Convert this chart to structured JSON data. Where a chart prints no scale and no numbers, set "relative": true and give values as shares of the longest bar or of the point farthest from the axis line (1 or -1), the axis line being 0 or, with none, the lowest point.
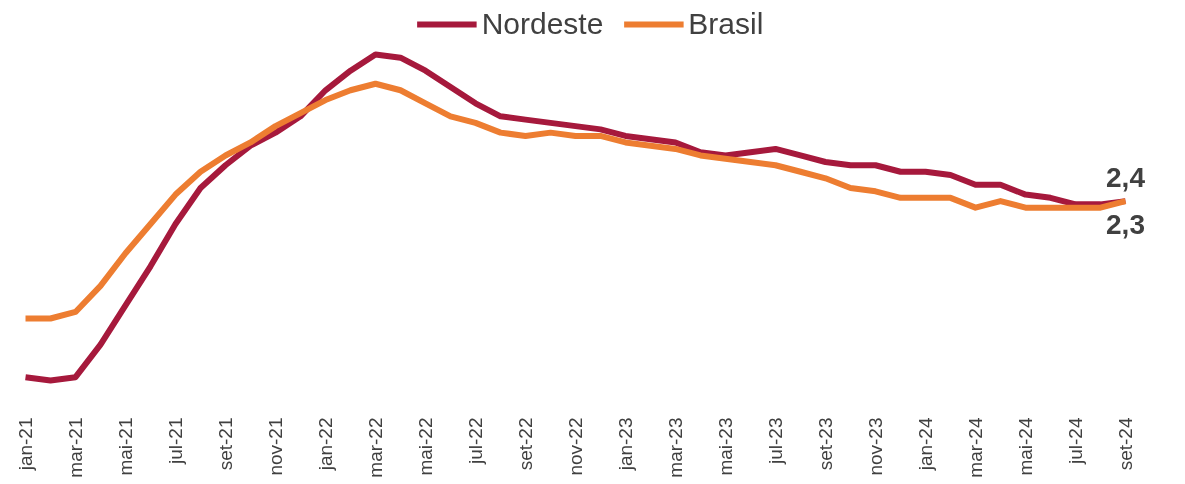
{
  "chart_data": {
    "type": "line",
    "relative": true,
    "legend": "top",
    "grid": false,
    "line_style": "solid",
    "categories": [
      "jan-21",
      null,
      "mar-21",
      null,
      "mai-21",
      null,
      "jul-21",
      null,
      "set-21",
      null,
      "nov-21",
      null,
      "jan-22",
      null,
      "mar-22",
      null,
      "mai-22",
      null,
      "jul-22",
      null,
      "set-22",
      null,
      "nov-22",
      null,
      "jan-23",
      null,
      "mar-23",
      null,
      "mai-23",
      null,
      "jul-23",
      null,
      "set-23",
      null,
      "nov-23",
      null,
      "jan-24",
      null,
      "mar-24",
      null,
      "mai-24",
      null,
      "jul-24",
      null,
      "set-24"
    ],
    "series": [
      {
        "name": "Nordeste",
        "color": "#a6193c",
        "values": [
          0.01,
          0,
          0.01,
          0.11,
          0.23,
          0.35,
          0.48,
          0.59,
          0.66,
          0.72,
          0.76,
          0.81,
          0.89,
          0.95,
          1,
          0.99,
          0.95,
          0.9,
          0.85,
          0.81,
          0.8,
          0.79,
          0.78,
          0.77,
          0.75,
          0.74,
          0.73,
          0.7,
          0.69,
          0.7,
          0.71,
          0.69,
          0.67,
          0.66,
          0.66,
          0.64,
          0.64,
          0.63,
          0.6,
          0.6,
          0.57,
          0.56,
          0.54,
          0.54,
          0.55
        ]
      },
      {
        "name": "Brasil",
        "color": "#ed7d31",
        "values": [
          0.19,
          0.19,
          0.21,
          0.29,
          0.39,
          0.48,
          0.57,
          0.64,
          0.69,
          0.73,
          0.78,
          0.82,
          0.86,
          0.89,
          0.91,
          0.89,
          0.85,
          0.81,
          0.79,
          0.76,
          0.75,
          0.76,
          0.75,
          0.75,
          0.73,
          0.72,
          0.71,
          0.69,
          0.68,
          0.67,
          0.66,
          0.64,
          0.62,
          0.59,
          0.58,
          0.56,
          0.56,
          0.56,
          0.53,
          0.55,
          0.53,
          0.53,
          0.53,
          0.53,
          0.55
        ]
      }
    ],
    "annotations": [
      "2,4",
      "2,3"
    ]
  }
}
